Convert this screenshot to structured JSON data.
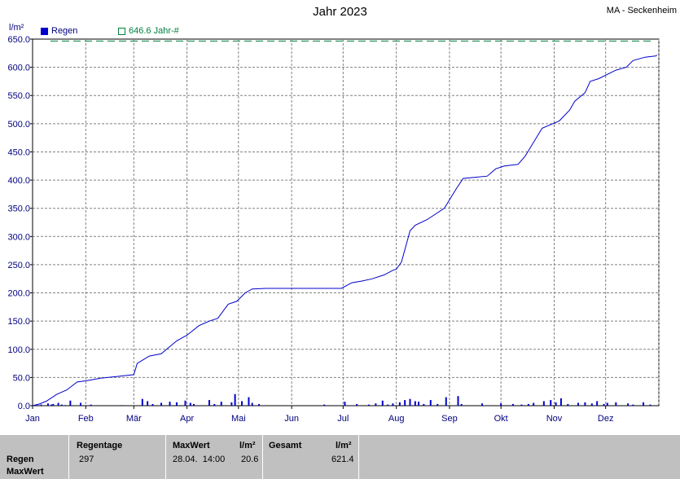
{
  "title": "Jahr 2023",
  "station": "MA - Seckenheim",
  "unit": "l/m²",
  "legend": {
    "rain_label": "Regen",
    "rain_color": "#0000cc",
    "normal_label": "646.6 Jahr-#",
    "normal_color": "#008040"
  },
  "chart_data": {
    "type": "bar",
    "title": "Jahr 2023",
    "ylabel": "l/m²",
    "ylim": [
      0,
      650
    ],
    "yticks": [
      "0.0",
      "50.0",
      "100.0",
      "150.0",
      "200.0",
      "250.0",
      "300.0",
      "350.0",
      "400.0",
      "450.0",
      "500.0",
      "550.0",
      "600.0",
      "650.0"
    ],
    "months": [
      "Jan",
      "Feb",
      "Mär",
      "Apr",
      "Mai",
      "Jun",
      "Jul",
      "Aug",
      "Sep",
      "Okt",
      "Nov",
      "Dez"
    ],
    "grid": true,
    "reference_line": {
      "name": "646.6 Jahr-#",
      "value": 646.6
    },
    "cumulative": {
      "name": "Regen",
      "x": [
        0,
        4,
        8,
        14,
        20,
        26,
        31,
        40,
        50,
        59,
        61,
        68,
        75,
        84,
        90,
        97,
        103,
        108,
        114,
        119,
        124,
        128,
        136,
        145,
        150,
        160,
        170,
        180,
        186,
        192,
        198,
        205,
        210,
        212,
        215,
        220,
        223,
        230,
        240,
        247,
        251,
        258,
        265,
        270,
        275,
        283,
        287,
        297,
        307,
        313,
        316,
        322,
        325,
        330,
        340,
        346,
        350,
        357,
        363,
        364
      ],
      "y": [
        0,
        3,
        8,
        20,
        28,
        42,
        44,
        49,
        52,
        55,
        75,
        88,
        92,
        115,
        125,
        142,
        150,
        155,
        180,
        185,
        200,
        207,
        208,
        208,
        208,
        208,
        208,
        208,
        218,
        221,
        225,
        232,
        240,
        242,
        255,
        310,
        320,
        330,
        350,
        385,
        403,
        405,
        407,
        420,
        425,
        428,
        442,
        492,
        505,
        524,
        540,
        555,
        575,
        580,
        595,
        600,
        612,
        618,
        620,
        621.4
      ]
    },
    "daily": {
      "name": "Regen",
      "days": [
        3,
        5,
        9,
        11,
        12,
        15,
        17,
        19,
        22,
        28,
        34,
        52,
        64,
        67,
        70,
        75,
        80,
        84,
        89,
        92,
        94,
        103,
        106,
        110,
        116,
        118,
        122,
        126,
        128,
        132,
        170,
        182,
        189,
        196,
        200,
        204,
        207,
        210,
        214,
        217,
        220,
        223,
        225,
        228,
        232,
        236,
        241,
        248,
        250,
        262,
        273,
        280,
        285,
        289,
        292,
        298,
        302,
        305,
        308,
        312,
        318,
        322,
        326,
        329,
        333,
        335,
        340,
        347,
        350,
        356,
        360
      ],
      "values": [
        1,
        2,
        4,
        2,
        3,
        5,
        2,
        1,
        9,
        5,
        2,
        1,
        12,
        8,
        3,
        5,
        7,
        6,
        9,
        5,
        3,
        10,
        3,
        7,
        6,
        20.6,
        8,
        15,
        5,
        3,
        2,
        7,
        3,
        2,
        4,
        9,
        2,
        4,
        6,
        10,
        12,
        8,
        7,
        3,
        10,
        3,
        15,
        17,
        3,
        4,
        4,
        3,
        2,
        3,
        5,
        8,
        10,
        6,
        13,
        3,
        5,
        6,
        4,
        8,
        3,
        5,
        6,
        4,
        2,
        6,
        2
      ]
    }
  },
  "footer": {
    "row_labels": [
      "Regen",
      "MaxWert"
    ],
    "rain_days_label": "Regentage",
    "rain_days_value": "297",
    "max_label": "MaxWert",
    "max_date": "28.04.  14:00",
    "max_unit": "l/m²",
    "max_value": "20.6",
    "total_label": "Gesamt",
    "total_unit": "l/m²",
    "total_value": "621.4"
  }
}
